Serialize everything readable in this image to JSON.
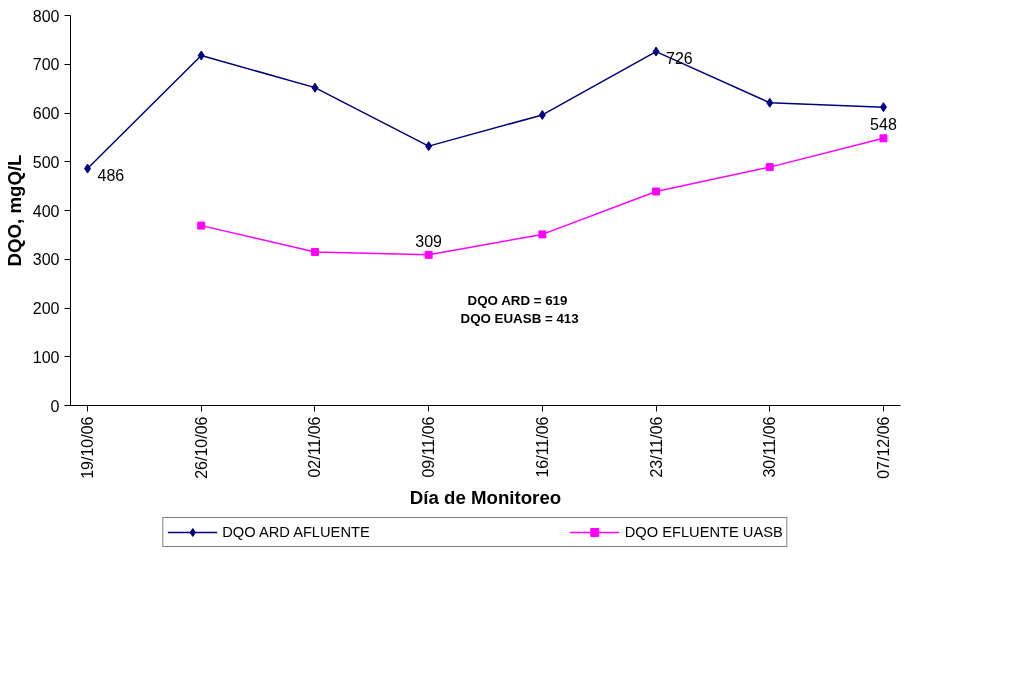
{
  "chart_data": {
    "type": "line",
    "xlabel": "Día de Monitoreo",
    "ylabel": "DQO, mgQ/L",
    "categories": [
      "19/10/06",
      "26/10/06",
      "02/11/06",
      "09/11/06",
      "16/11/06",
      "23/11/06",
      "30/11/06",
      "07/12/06"
    ],
    "series": [
      {
        "name": "DQO ARD AFLUENTE",
        "color": "#000080",
        "marker": "diamond",
        "values": [
          486,
          718,
          652,
          532,
          596,
          726,
          621,
          612
        ],
        "value_labels": [
          "486",
          null,
          null,
          null,
          null,
          "726",
          null,
          null
        ]
      },
      {
        "name": "DQO EFLUENTE UASB",
        "color": "#ff00ff",
        "marker": "square",
        "values": [
          null,
          369,
          315,
          309,
          351,
          439,
          489,
          548
        ],
        "value_labels": [
          null,
          null,
          null,
          "309",
          null,
          null,
          null,
          "548"
        ]
      }
    ],
    "ylim": [
      0,
      800
    ],
    "yticks": [
      0,
      100,
      200,
      300,
      400,
      500,
      600,
      700,
      800
    ],
    "grid": false,
    "legend": "bottom",
    "annotations": [
      "DQO ARD =  619",
      "DQO EUASB = 413"
    ]
  }
}
